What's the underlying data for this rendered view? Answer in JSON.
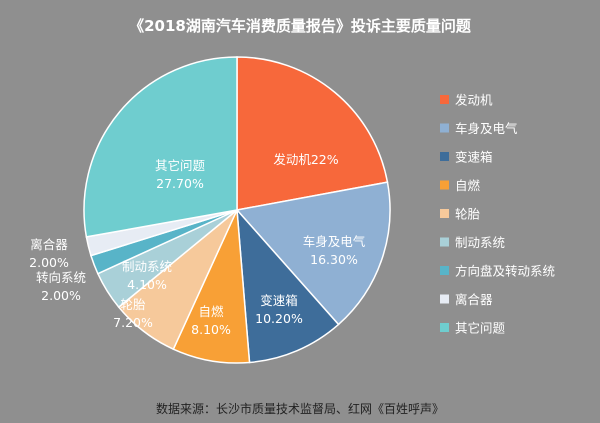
{
  "title": "《2018湖南汽车消费质量报告》投诉主要质量问题",
  "source": "数据来源：长沙市质量技术监督局、红网《百姓呼声》",
  "chart_data": {
    "type": "pie",
    "title": "《2018湖南汽车消费质量报告》投诉主要质量问题",
    "start_angle_deg": 0,
    "direction": "clockwise",
    "legend_position": "right",
    "slices": [
      {
        "name": "发动机",
        "value": 22.0,
        "label_lines": [
          "发动机22%"
        ],
        "color": "#f7683b"
      },
      {
        "name": "车身及电气",
        "value": 16.3,
        "label_lines": [
          "车身及电气",
          "16.30%"
        ],
        "color": "#8fb0d3"
      },
      {
        "name": "变速箱",
        "value": 10.2,
        "label_lines": [
          "变速箱",
          "10.20%"
        ],
        "color": "#3e6d9a"
      },
      {
        "name": "自燃",
        "value": 8.1,
        "label_lines": [
          "自燃",
          "8.10%"
        ],
        "color": "#f8a036"
      },
      {
        "name": "轮胎",
        "value": 7.2,
        "label_lines": [
          "轮胎",
          "7.20%"
        ],
        "color": "#f6c99b"
      },
      {
        "name": "制动系统",
        "value": 4.1,
        "label_lines": [
          "制动系统",
          "4.10%"
        ],
        "color": "#a9d0d8"
      },
      {
        "name": "方向盘及转动系统",
        "value": 2.0,
        "label_lines": [
          "转向系统",
          "2.00%"
        ],
        "color": "#58b4c8"
      },
      {
        "name": "离合器",
        "value": 2.0,
        "label_lines": [
          "离合器",
          "2.00%"
        ],
        "color": "#e7ecf4"
      },
      {
        "name": "其它问题",
        "value": 27.7,
        "label_lines": [
          "其它问题",
          "27.70%"
        ],
        "color": "#6fcdcf"
      }
    ]
  }
}
